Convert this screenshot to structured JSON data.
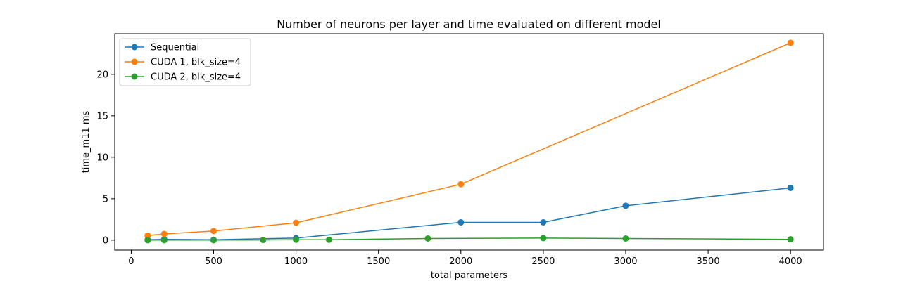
{
  "chart_data": {
    "type": "line",
    "title": "Number of neurons per layer and time evaluated on different model",
    "xlabel": "total parameters",
    "ylabel": "time_m11 ms",
    "xlim": [
      -100,
      4200
    ],
    "ylim": [
      -1.2,
      24.9
    ],
    "xticks": [
      0,
      500,
      1000,
      1500,
      2000,
      2500,
      3000,
      3500,
      4000
    ],
    "yticks": [
      0,
      5,
      10,
      15,
      20
    ],
    "grid": false,
    "legend_position": "top-left",
    "series": [
      {
        "name": "Sequential",
        "color": "#1f77b4",
        "x": [
          100,
          200,
          500,
          1000,
          2000,
          2500,
          3000,
          4000
        ],
        "y": [
          0.05,
          0.1,
          0.05,
          0.25,
          2.15,
          2.15,
          4.15,
          6.3
        ]
      },
      {
        "name": "CUDA 1, blk_size=4",
        "color": "#ff7f0e",
        "x": [
          100,
          200,
          500,
          1000,
          2000,
          4000
        ],
        "y": [
          0.55,
          0.75,
          1.1,
          2.1,
          6.75,
          23.8
        ]
      },
      {
        "name": "CUDA 2, blk_size=4",
        "color": "#2ca02c",
        "x": [
          100,
          200,
          500,
          800,
          1000,
          1200,
          1800,
          2500,
          3000,
          4000
        ],
        "y": [
          0.0,
          0.0,
          0.0,
          0.02,
          0.05,
          0.05,
          0.2,
          0.25,
          0.2,
          0.1
        ]
      }
    ]
  }
}
